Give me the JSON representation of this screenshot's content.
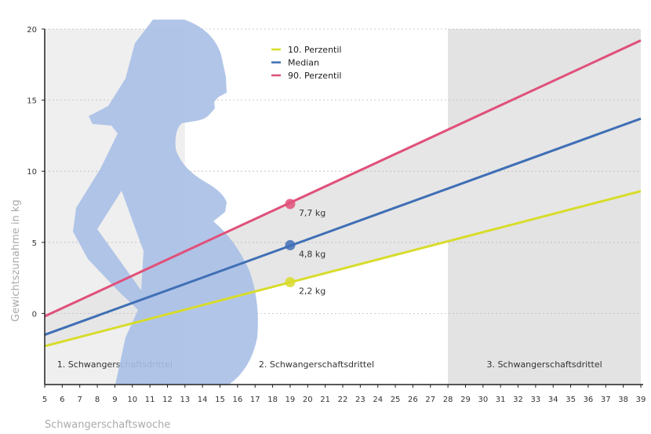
{
  "chart_data": {
    "type": "line",
    "xlabel": "Schwangerschaftswoche",
    "ylabel": "Gewichtszunahme in kg",
    "xlim": [
      5,
      39
    ],
    "ylim": [
      -5,
      20
    ],
    "yticks": [
      0,
      5,
      10,
      15,
      20
    ],
    "xticks": [
      5,
      6,
      7,
      8,
      9,
      10,
      11,
      12,
      13,
      14,
      15,
      16,
      17,
      18,
      19,
      20,
      21,
      22,
      23,
      24,
      25,
      26,
      27,
      28,
      29,
      30,
      31,
      32,
      33,
      34,
      35,
      36,
      37,
      38,
      39
    ],
    "grid": "horizontal dotted",
    "legend_position": "top-center",
    "series": [
      {
        "name": "10. Perzentil",
        "color": "#d8dc2a",
        "x": [
          5,
          39
        ],
        "y": [
          -2.3,
          8.6
        ],
        "point": {
          "x": 19,
          "y": 2.2,
          "label": "2,2 kg"
        }
      },
      {
        "name": "Median",
        "color": "#3f6fb5",
        "x": [
          5,
          39
        ],
        "y": [
          -1.5,
          13.7
        ],
        "point": {
          "x": 19,
          "y": 4.8,
          "label": "4,8 kg"
        }
      },
      {
        "name": "90. Perzentil",
        "color": "#e0507a",
        "x": [
          5,
          39
        ],
        "y": [
          -0.2,
          19.2
        ],
        "point": {
          "x": 19,
          "y": 7.7,
          "label": "7,7 kg"
        }
      }
    ],
    "trimesters": [
      {
        "label": "1. Schwangerschaftsdrittel",
        "from": 5,
        "to": 13
      },
      {
        "label": "2. Schwangerschaftsdrittel",
        "from": 13,
        "to": 28
      },
      {
        "label": "3. Schwangerschaftsdrittel",
        "from": 28,
        "to": 39
      }
    ]
  }
}
